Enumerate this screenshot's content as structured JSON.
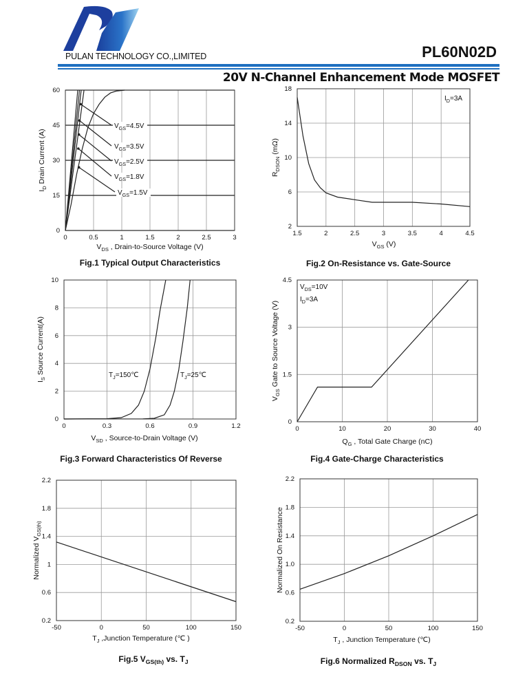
{
  "header": {
    "company": "PULAN TECHNOLOGY CO.,LIMITED",
    "part_number": "PL60N02D",
    "subtitle": "20V N-Channel Enhancement Mode MOSFET",
    "logo_text": "P",
    "brand_color": "#1e6fc0"
  },
  "chart_data": [
    {
      "type": "line",
      "caption": [
        {
          "t": "Fig.1 Typical Output Characteristics"
        }
      ],
      "xlabel": [
        {
          "t": "V"
        },
        {
          "t": "DS",
          "sub": true
        },
        {
          "t": " , Drain-to-Source Voltage (V)"
        }
      ],
      "ylabel": [
        {
          "t": "I"
        },
        {
          "t": "D",
          "sub": true
        },
        {
          "t": " Drain Current (A)"
        }
      ],
      "xlim": [
        0,
        3
      ],
      "xticks": [
        0,
        0.5,
        1,
        1.5,
        2,
        2.5,
        3
      ],
      "ylim": [
        0,
        60
      ],
      "yticks": [
        0,
        15,
        30,
        45,
        60
      ],
      "grid": true,
      "series": [
        {
          "name": [
            {
              "t": "V"
            },
            {
              "t": "GS",
              "sub": true
            },
            {
              "t": "=4.5V"
            }
          ],
          "points": [
            [
              0,
              0
            ],
            [
              0.22,
              60
            ]
          ]
        },
        {
          "name": [
            {
              "t": "V"
            },
            {
              "t": "GS",
              "sub": true
            },
            {
              "t": "=3.5V"
            }
          ],
          "points": [
            [
              0,
              0
            ],
            [
              0.25,
              60
            ]
          ]
        },
        {
          "name": [
            {
              "t": "V"
            },
            {
              "t": "GS",
              "sub": true
            },
            {
              "t": "=2.5V"
            }
          ],
          "points": [
            [
              0,
              0
            ],
            [
              0.28,
              60
            ]
          ]
        },
        {
          "name": [
            {
              "t": "V"
            },
            {
              "t": "GS",
              "sub": true
            },
            {
              "t": "=1.8V"
            }
          ],
          "points": [
            [
              0,
              0
            ],
            [
              0.33,
              60
            ]
          ]
        },
        {
          "name": [
            {
              "t": "V"
            },
            {
              "t": "GS",
              "sub": true
            },
            {
              "t": "=1.5V"
            }
          ],
          "points": [
            [
              0,
              0
            ],
            [
              0.1,
              11
            ],
            [
              0.2,
              24
            ],
            [
              0.3,
              35
            ],
            [
              0.4,
              44
            ],
            [
              0.5,
              50
            ],
            [
              0.6,
              54
            ],
            [
              0.7,
              57
            ],
            [
              0.8,
              58.8
            ],
            [
              0.9,
              59.6
            ],
            [
              1.05,
              60
            ]
          ]
        }
      ]
    },
    {
      "type": "line",
      "caption": [
        {
          "t": "Fig.2 On-Resistance vs. Gate-Source"
        }
      ],
      "xlabel": [
        {
          "t": "V"
        },
        {
          "t": "GS",
          "sub": true
        },
        {
          "t": " (V)"
        }
      ],
      "ylabel": [
        {
          "t": "R"
        },
        {
          "t": "DSON",
          "sub": true
        },
        {
          "t": " (mΩ)"
        }
      ],
      "xlim": [
        1.5,
        4.5
      ],
      "xticks": [
        1.5,
        2,
        2.5,
        3,
        3.5,
        4,
        4.5
      ],
      "ylim": [
        2,
        18
      ],
      "yticks": [
        2,
        6,
        10,
        14,
        18
      ],
      "grid": true,
      "annotations": [
        [
          {
            "t": "I"
          },
          {
            "t": "D",
            "sub": true
          },
          {
            "t": "=3A"
          }
        ]
      ],
      "series": [
        {
          "points": [
            [
              1.5,
              17
            ],
            [
              1.6,
              12.5
            ],
            [
              1.7,
              9.3
            ],
            [
              1.8,
              7.4
            ],
            [
              1.9,
              6.5
            ],
            [
              2,
              5.9
            ],
            [
              2.2,
              5.4
            ],
            [
              2.5,
              5.1
            ],
            [
              2.8,
              4.8
            ],
            [
              3,
              4.8
            ],
            [
              3.5,
              4.8
            ],
            [
              4,
              4.6
            ],
            [
              4.5,
              4.3
            ]
          ]
        }
      ]
    },
    {
      "type": "line",
      "caption": [
        {
          "t": "Fig.3 Forward Characteristics Of Reverse"
        }
      ],
      "xlabel": [
        {
          "t": "V"
        },
        {
          "t": "SD",
          "sub": true
        },
        {
          "t": " , Source-to-Drain Voltage (V)"
        }
      ],
      "ylabel": [
        {
          "t": "I"
        },
        {
          "t": "S",
          "sub": true
        },
        {
          "t": " Source Current(A)"
        }
      ],
      "xlim": [
        0,
        1.2
      ],
      "xticks": [
        0,
        0.3,
        0.6,
        0.9,
        1.2
      ],
      "ylim": [
        0,
        10
      ],
      "yticks": [
        0,
        2,
        4,
        6,
        8,
        10
      ],
      "grid": true,
      "series": [
        {
          "name": [
            {
              "t": "T"
            },
            {
              "t": "J",
              "sub": true
            },
            {
              "t": "=150℃"
            }
          ],
          "points": [
            [
              0,
              0
            ],
            [
              0.3,
              0.02
            ],
            [
              0.4,
              0.1
            ],
            [
              0.47,
              0.4
            ],
            [
              0.52,
              1
            ],
            [
              0.56,
              2
            ],
            [
              0.6,
              3.6
            ],
            [
              0.64,
              5.8
            ],
            [
              0.67,
              7.8
            ],
            [
              0.71,
              10
            ]
          ]
        },
        {
          "name": [
            {
              "t": "T"
            },
            {
              "t": "J",
              "sub": true
            },
            {
              "t": "=25℃"
            }
          ],
          "points": [
            [
              0,
              0
            ],
            [
              0.55,
              0.01
            ],
            [
              0.63,
              0.05
            ],
            [
              0.7,
              0.3
            ],
            [
              0.74,
              1
            ],
            [
              0.77,
              2
            ],
            [
              0.8,
              3.5
            ],
            [
              0.83,
              5.6
            ],
            [
              0.86,
              8
            ],
            [
              0.88,
              10
            ]
          ]
        }
      ]
    },
    {
      "type": "line",
      "caption": [
        {
          "t": "Fig.4 Gate-Charge Characteristics"
        }
      ],
      "xlabel": [
        {
          "t": "Q"
        },
        {
          "t": "G",
          "sub": true
        },
        {
          "t": " , Total Gate Charge (nC)"
        }
      ],
      "ylabel": [
        {
          "t": "V"
        },
        {
          "t": "GS",
          "sub": true
        },
        {
          "t": "   Gate to Source Voltage (V)"
        }
      ],
      "xlim": [
        0,
        40
      ],
      "xticks": [
        0,
        10,
        20,
        30,
        40
      ],
      "ylim": [
        0,
        4.5
      ],
      "yticks": [
        0,
        1.5,
        3,
        4.5
      ],
      "grid": true,
      "annotations": [
        [
          {
            "t": "V"
          },
          {
            "t": "DS",
            "sub": true
          },
          {
            "t": "=10V"
          }
        ],
        [
          {
            "t": "I"
          },
          {
            "t": "D",
            "sub": true
          },
          {
            "t": "=3A"
          }
        ]
      ],
      "series": [
        {
          "points": [
            [
              0,
              0
            ],
            [
              4.5,
              1.1
            ],
            [
              16.5,
              1.1
            ],
            [
              38,
              4.5
            ]
          ]
        }
      ]
    },
    {
      "type": "line",
      "caption": [
        {
          "t": "Fig.5 V"
        },
        {
          "t": "GS(th)",
          "sub": true
        },
        {
          "t": " vs. T"
        },
        {
          "t": "J",
          "sub": true
        }
      ],
      "xlabel": [
        {
          "t": "T"
        },
        {
          "t": "J",
          "sub": true
        },
        {
          "t": " ,Junction Temperature (℃ )"
        }
      ],
      "ylabel": [
        {
          "t": "Normalized V"
        },
        {
          "t": "GS(th)",
          "sub": true
        }
      ],
      "xlim": [
        -50,
        150
      ],
      "xticks": [
        -50,
        0,
        50,
        100,
        150
      ],
      "ylim": [
        0.2,
        2.2
      ],
      "yticks": [
        0.2,
        0.6,
        1,
        1.4,
        1.8,
        2.2
      ],
      "grid": true,
      "series": [
        {
          "points": [
            [
              -50,
              1.32
            ],
            [
              150,
              0.47
            ]
          ]
        }
      ]
    },
    {
      "type": "line",
      "caption": [
        {
          "t": "Fig.6 Normalized R"
        },
        {
          "t": "DSON",
          "sub": true
        },
        {
          "t": " vs. T"
        },
        {
          "t": "J",
          "sub": true
        }
      ],
      "xlabel": [
        {
          "t": "T"
        },
        {
          "t": "J",
          "sub": true
        },
        {
          "t": " , Junction Temperature (℃)"
        }
      ],
      "ylabel": [
        {
          "t": "Normalized On Resistance"
        }
      ],
      "xlim": [
        -50,
        150
      ],
      "xticks": [
        -50,
        0,
        50,
        100,
        150
      ],
      "ylim": [
        0.2,
        2.2
      ],
      "yticks": [
        0.2,
        0.6,
        1.0,
        1.4,
        1.8,
        2.2
      ],
      "ytick_labels": [
        "0.2",
        "0.6",
        "1.0",
        "1.4",
        "1.8",
        "2.2"
      ],
      "grid": true,
      "series": [
        {
          "points": [
            [
              -50,
              0.65
            ],
            [
              0,
              0.87
            ],
            [
              50,
              1.12
            ],
            [
              100,
              1.4
            ],
            [
              150,
              1.7
            ]
          ]
        }
      ]
    }
  ]
}
